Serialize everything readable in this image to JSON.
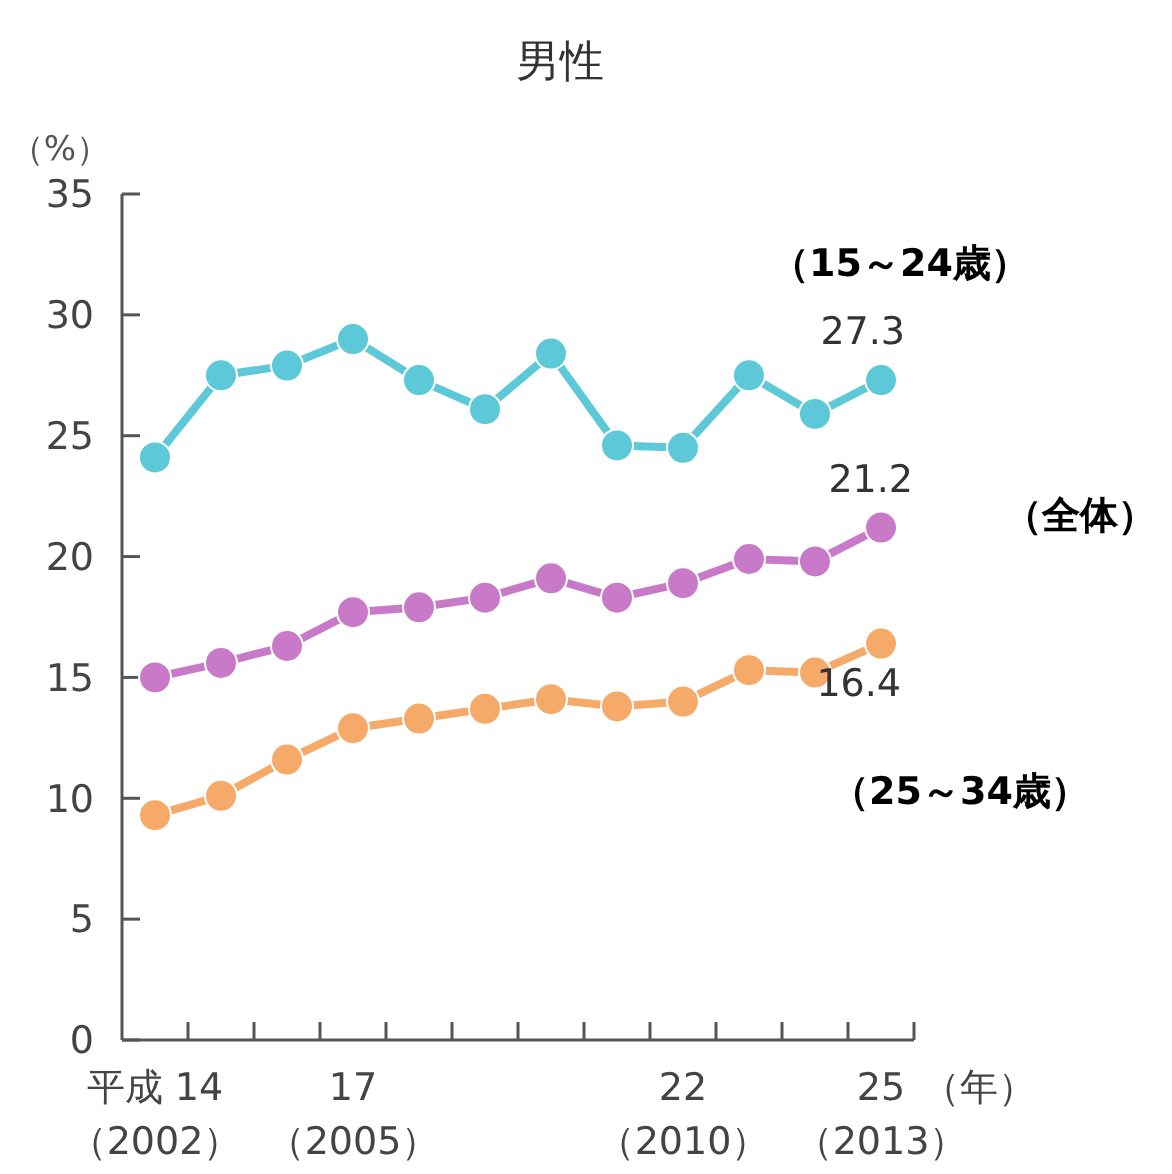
{
  "chart_data": {
    "type": "line",
    "title": "男性",
    "ylabel": "（%）",
    "xlabel": "（年）",
    "categories": [
      "平成 14\n（2002）",
      null,
      null,
      "17\n（2005）",
      null,
      null,
      null,
      null,
      "22\n（2010）",
      null,
      null,
      "25\n（2013）"
    ],
    "ylim": [
      0,
      35
    ],
    "yticks": [
      0,
      5,
      10,
      15,
      20,
      25,
      30,
      35
    ],
    "grid": false,
    "legend": false,
    "marker": "circle",
    "line_style": "solid",
    "series": [
      {
        "name": "（15～24歳）",
        "color": "#5cc8d8",
        "values": [
          24.1,
          27.5,
          27.9,
          29.0,
          27.3,
          26.1,
          28.4,
          24.6,
          24.5,
          27.5,
          25.9,
          27.3
        ],
        "value_labels": [
          null,
          null,
          null,
          null,
          null,
          null,
          null,
          null,
          null,
          null,
          null,
          "27.3"
        ]
      },
      {
        "name": "（全体）",
        "color": "#c87ac8",
        "values": [
          15.0,
          15.6,
          16.3,
          17.7,
          17.9,
          18.3,
          19.1,
          18.3,
          18.9,
          19.9,
          19.8,
          21.2
        ],
        "value_labels": [
          null,
          null,
          null,
          null,
          null,
          null,
          null,
          null,
          null,
          null,
          null,
          "21.2"
        ]
      },
      {
        "name": "（25～34歳）",
        "color": "#f6aa6a",
        "values": [
          9.3,
          10.1,
          11.6,
          12.9,
          13.3,
          13.7,
          14.1,
          13.8,
          14.0,
          15.3,
          15.2,
          16.4
        ],
        "value_labels": [
          null,
          null,
          null,
          null,
          null,
          null,
          null,
          null,
          null,
          null,
          null,
          "16.4"
        ]
      }
    ]
  }
}
